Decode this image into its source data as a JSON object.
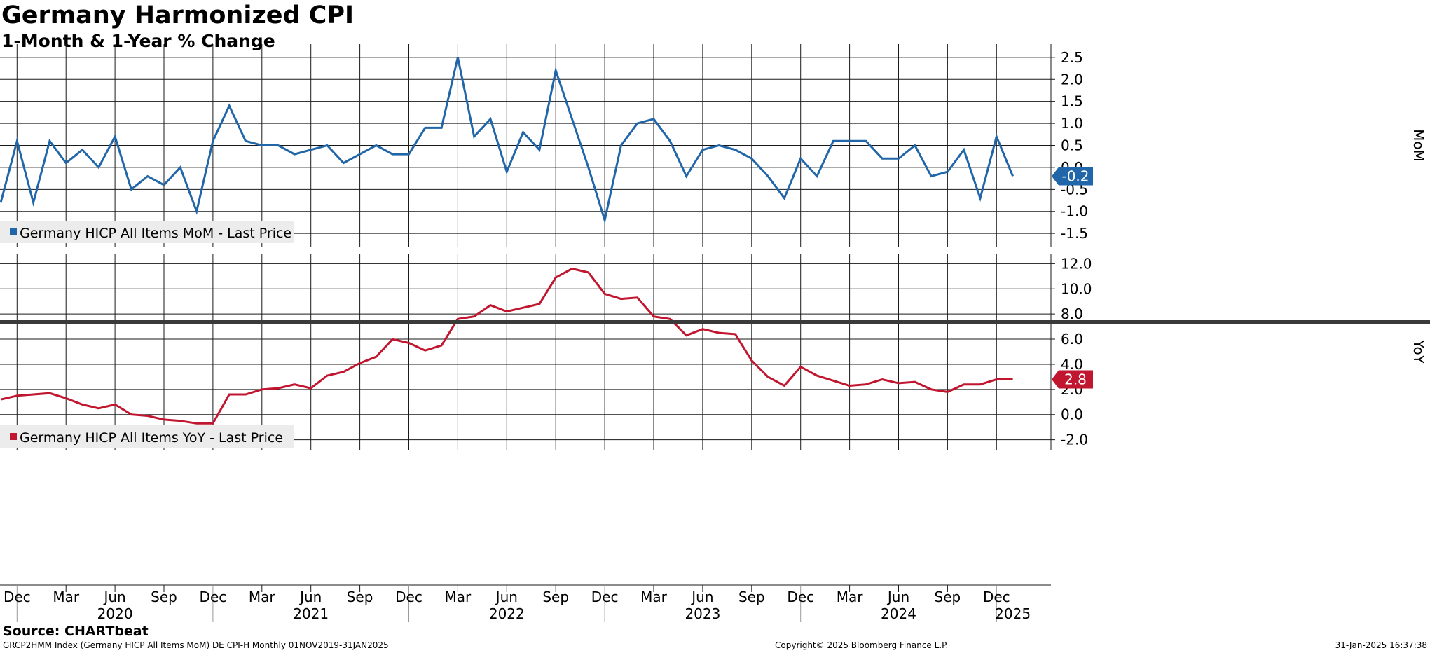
{
  "title": "Germany Harmonized CPI",
  "subtitle": "1-Month & 1-Year % Change",
  "footer": {
    "source": "Source: CHARTbeat",
    "left": "GRCP2HMM Index (Germany HICP All Items MoM) DE CPI-H  Monthly 01NOV2019-31JAN2025",
    "center": "Copyright© 2025 Bloomberg Finance L.P.",
    "right": "31-Jan-2025 16:37:38"
  },
  "chart_data": [
    {
      "type": "line",
      "panel": "top",
      "ylabel": "MoM",
      "ylim": [
        -1.8,
        2.8
      ],
      "yticks": [
        "2.5",
        "2.0",
        "1.5",
        "1.0",
        "0.5",
        "0.0",
        "-0.5",
        "-1.0",
        "-1.5"
      ],
      "grid": true,
      "legend_position": "bottom-left",
      "color": "#2166a8",
      "series": [
        {
          "name": "Germany HICP All Items MoM - Last Price",
          "last_value_label": "-0.2",
          "x": [
            "2019-11",
            "2019-12",
            "2020-01",
            "2020-02",
            "2020-03",
            "2020-04",
            "2020-05",
            "2020-06",
            "2020-07",
            "2020-08",
            "2020-09",
            "2020-10",
            "2020-11",
            "2020-12",
            "2021-01",
            "2021-02",
            "2021-03",
            "2021-04",
            "2021-05",
            "2021-06",
            "2021-07",
            "2021-08",
            "2021-09",
            "2021-10",
            "2021-11",
            "2021-12",
            "2022-01",
            "2022-02",
            "2022-03",
            "2022-04",
            "2022-05",
            "2022-06",
            "2022-07",
            "2022-08",
            "2022-09",
            "2022-10",
            "2022-11",
            "2022-12",
            "2023-01",
            "2023-02",
            "2023-03",
            "2023-04",
            "2023-05",
            "2023-06",
            "2023-07",
            "2023-08",
            "2023-09",
            "2023-10",
            "2023-11",
            "2023-12",
            "2024-01",
            "2024-02",
            "2024-03",
            "2024-04",
            "2024-05",
            "2024-06",
            "2024-07",
            "2024-08",
            "2024-09",
            "2024-10",
            "2024-11",
            "2024-12",
            "2025-01"
          ],
          "values": [
            -0.8,
            0.6,
            -0.8,
            0.6,
            0.1,
            0.4,
            0.0,
            0.7,
            -0.5,
            -0.2,
            -0.4,
            0.0,
            -1.0,
            0.6,
            1.4,
            0.6,
            0.5,
            0.5,
            0.3,
            0.4,
            0.5,
            0.1,
            0.3,
            0.5,
            0.3,
            0.3,
            0.9,
            0.9,
            2.5,
            0.7,
            1.1,
            -0.1,
            0.8,
            0.4,
            2.2,
            1.1,
            0.0,
            -1.2,
            0.5,
            1.0,
            1.1,
            0.6,
            -0.2,
            0.4,
            0.5,
            0.4,
            0.2,
            -0.2,
            -0.7,
            0.2,
            -0.2,
            0.6,
            0.6,
            0.6,
            0.2,
            0.2,
            0.5,
            -0.2,
            -0.1,
            0.4,
            -0.7,
            0.7,
            -0.2
          ]
        }
      ]
    },
    {
      "type": "line",
      "panel": "bottom",
      "ylabel": "YoY",
      "ylim": [
        -2.8,
        12.8
      ],
      "yticks": [
        "12.0",
        "10.0",
        "8.0",
        "6.0",
        "4.0",
        "2.0",
        "0.0",
        "-2.0"
      ],
      "grid": true,
      "legend_position": "bottom-left",
      "color": "#c0162f",
      "series": [
        {
          "name": "Germany HICP All Items YoY - Last Price",
          "last_value_label": "2.8",
          "x": [
            "2019-11",
            "2019-12",
            "2020-01",
            "2020-02",
            "2020-03",
            "2020-04",
            "2020-05",
            "2020-06",
            "2020-07",
            "2020-08",
            "2020-09",
            "2020-10",
            "2020-11",
            "2020-12",
            "2021-01",
            "2021-02",
            "2021-03",
            "2021-04",
            "2021-05",
            "2021-06",
            "2021-07",
            "2021-08",
            "2021-09",
            "2021-10",
            "2021-11",
            "2021-12",
            "2022-01",
            "2022-02",
            "2022-03",
            "2022-04",
            "2022-05",
            "2022-06",
            "2022-07",
            "2022-08",
            "2022-09",
            "2022-10",
            "2022-11",
            "2022-12",
            "2023-01",
            "2023-02",
            "2023-03",
            "2023-04",
            "2023-05",
            "2023-06",
            "2023-07",
            "2023-08",
            "2023-09",
            "2023-10",
            "2023-11",
            "2023-12",
            "2024-01",
            "2024-02",
            "2024-03",
            "2024-04",
            "2024-05",
            "2024-06",
            "2024-07",
            "2024-08",
            "2024-09",
            "2024-10",
            "2024-11",
            "2024-12",
            "2025-01"
          ],
          "values": [
            1.2,
            1.5,
            1.6,
            1.7,
            1.3,
            0.8,
            0.5,
            0.8,
            0.0,
            -0.1,
            -0.4,
            -0.5,
            -0.7,
            -0.7,
            1.6,
            1.6,
            2.0,
            2.1,
            2.4,
            2.1,
            3.1,
            3.4,
            4.1,
            4.6,
            6.0,
            5.7,
            5.1,
            5.5,
            7.6,
            7.8,
            8.7,
            8.2,
            8.5,
            8.8,
            10.9,
            11.6,
            11.3,
            9.6,
            9.2,
            9.3,
            7.8,
            7.6,
            6.3,
            6.8,
            6.5,
            6.4,
            4.3,
            3.0,
            2.3,
            3.8,
            3.1,
            2.7,
            2.3,
            2.4,
            2.8,
            2.5,
            2.6,
            2.0,
            1.8,
            2.4,
            2.4,
            2.8,
            2.8
          ]
        }
      ]
    }
  ],
  "x_axis": {
    "month_ticks": [
      {
        "x": "2019-12",
        "label": "Dec"
      },
      {
        "x": "2020-03",
        "label": "Mar"
      },
      {
        "x": "2020-06",
        "label": "Jun"
      },
      {
        "x": "2020-09",
        "label": "Sep"
      },
      {
        "x": "2020-12",
        "label": "Dec"
      },
      {
        "x": "2021-03",
        "label": "Mar"
      },
      {
        "x": "2021-06",
        "label": "Jun"
      },
      {
        "x": "2021-09",
        "label": "Sep"
      },
      {
        "x": "2021-12",
        "label": "Dec"
      },
      {
        "x": "2022-03",
        "label": "Mar"
      },
      {
        "x": "2022-06",
        "label": "Jun"
      },
      {
        "x": "2022-09",
        "label": "Sep"
      },
      {
        "x": "2022-12",
        "label": "Dec"
      },
      {
        "x": "2023-03",
        "label": "Mar"
      },
      {
        "x": "2023-06",
        "label": "Jun"
      },
      {
        "x": "2023-09",
        "label": "Sep"
      },
      {
        "x": "2023-12",
        "label": "Dec"
      },
      {
        "x": "2024-03",
        "label": "Mar"
      },
      {
        "x": "2024-06",
        "label": "Jun"
      },
      {
        "x": "2024-09",
        "label": "Sep"
      },
      {
        "x": "2024-12",
        "label": "Dec"
      }
    ],
    "year_labels": [
      {
        "x": "2020-06",
        "label": "2020"
      },
      {
        "x": "2021-06",
        "label": "2021"
      },
      {
        "x": "2022-06",
        "label": "2022"
      },
      {
        "x": "2023-06",
        "label": "2023"
      },
      {
        "x": "2024-06",
        "label": "2024"
      },
      {
        "x": "2025-01",
        "label": "2025"
      }
    ]
  }
}
